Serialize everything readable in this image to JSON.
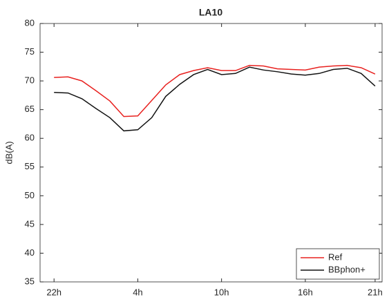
{
  "chart_data": {
    "type": "line",
    "title": "LA10",
    "y_label": "dB(A)",
    "x": [
      0,
      1,
      2,
      3,
      4,
      5,
      6,
      7,
      8,
      9,
      10,
      11,
      12,
      13,
      14,
      15,
      16,
      17,
      18,
      19,
      20,
      21,
      22,
      23
    ],
    "xlim": [
      -1,
      23.5
    ],
    "xticks": [
      {
        "value": 0,
        "label": "22h"
      },
      {
        "value": 6,
        "label": "4h"
      },
      {
        "value": 12,
        "label": "10h"
      },
      {
        "value": 18,
        "label": "16h"
      },
      {
        "value": 23,
        "label": "21h"
      }
    ],
    "ylim": [
      35,
      80
    ],
    "yticks": [
      35,
      40,
      45,
      50,
      55,
      60,
      65,
      70,
      75,
      80
    ],
    "grid": false,
    "legend": "lower right",
    "series": [
      {
        "name": "Ref",
        "color": "#e8201e",
        "values": [
          70.6,
          70.7,
          70.0,
          68.3,
          66.5,
          63.8,
          63.9,
          66.6,
          69.3,
          71.1,
          71.8,
          72.3,
          71.8,
          71.8,
          72.7,
          72.6,
          72.1,
          72.0,
          71.9,
          72.4,
          72.6,
          72.7,
          72.3,
          71.2
        ]
      },
      {
        "name": "BBphon+",
        "color": "#111111",
        "values": [
          68.0,
          67.9,
          66.9,
          65.2,
          63.6,
          61.3,
          61.5,
          63.6,
          67.3,
          69.4,
          71.1,
          72.0,
          71.1,
          71.3,
          72.4,
          71.9,
          71.6,
          71.2,
          71.0,
          71.3,
          72.0,
          72.2,
          71.3,
          69.1
        ]
      }
    ]
  }
}
